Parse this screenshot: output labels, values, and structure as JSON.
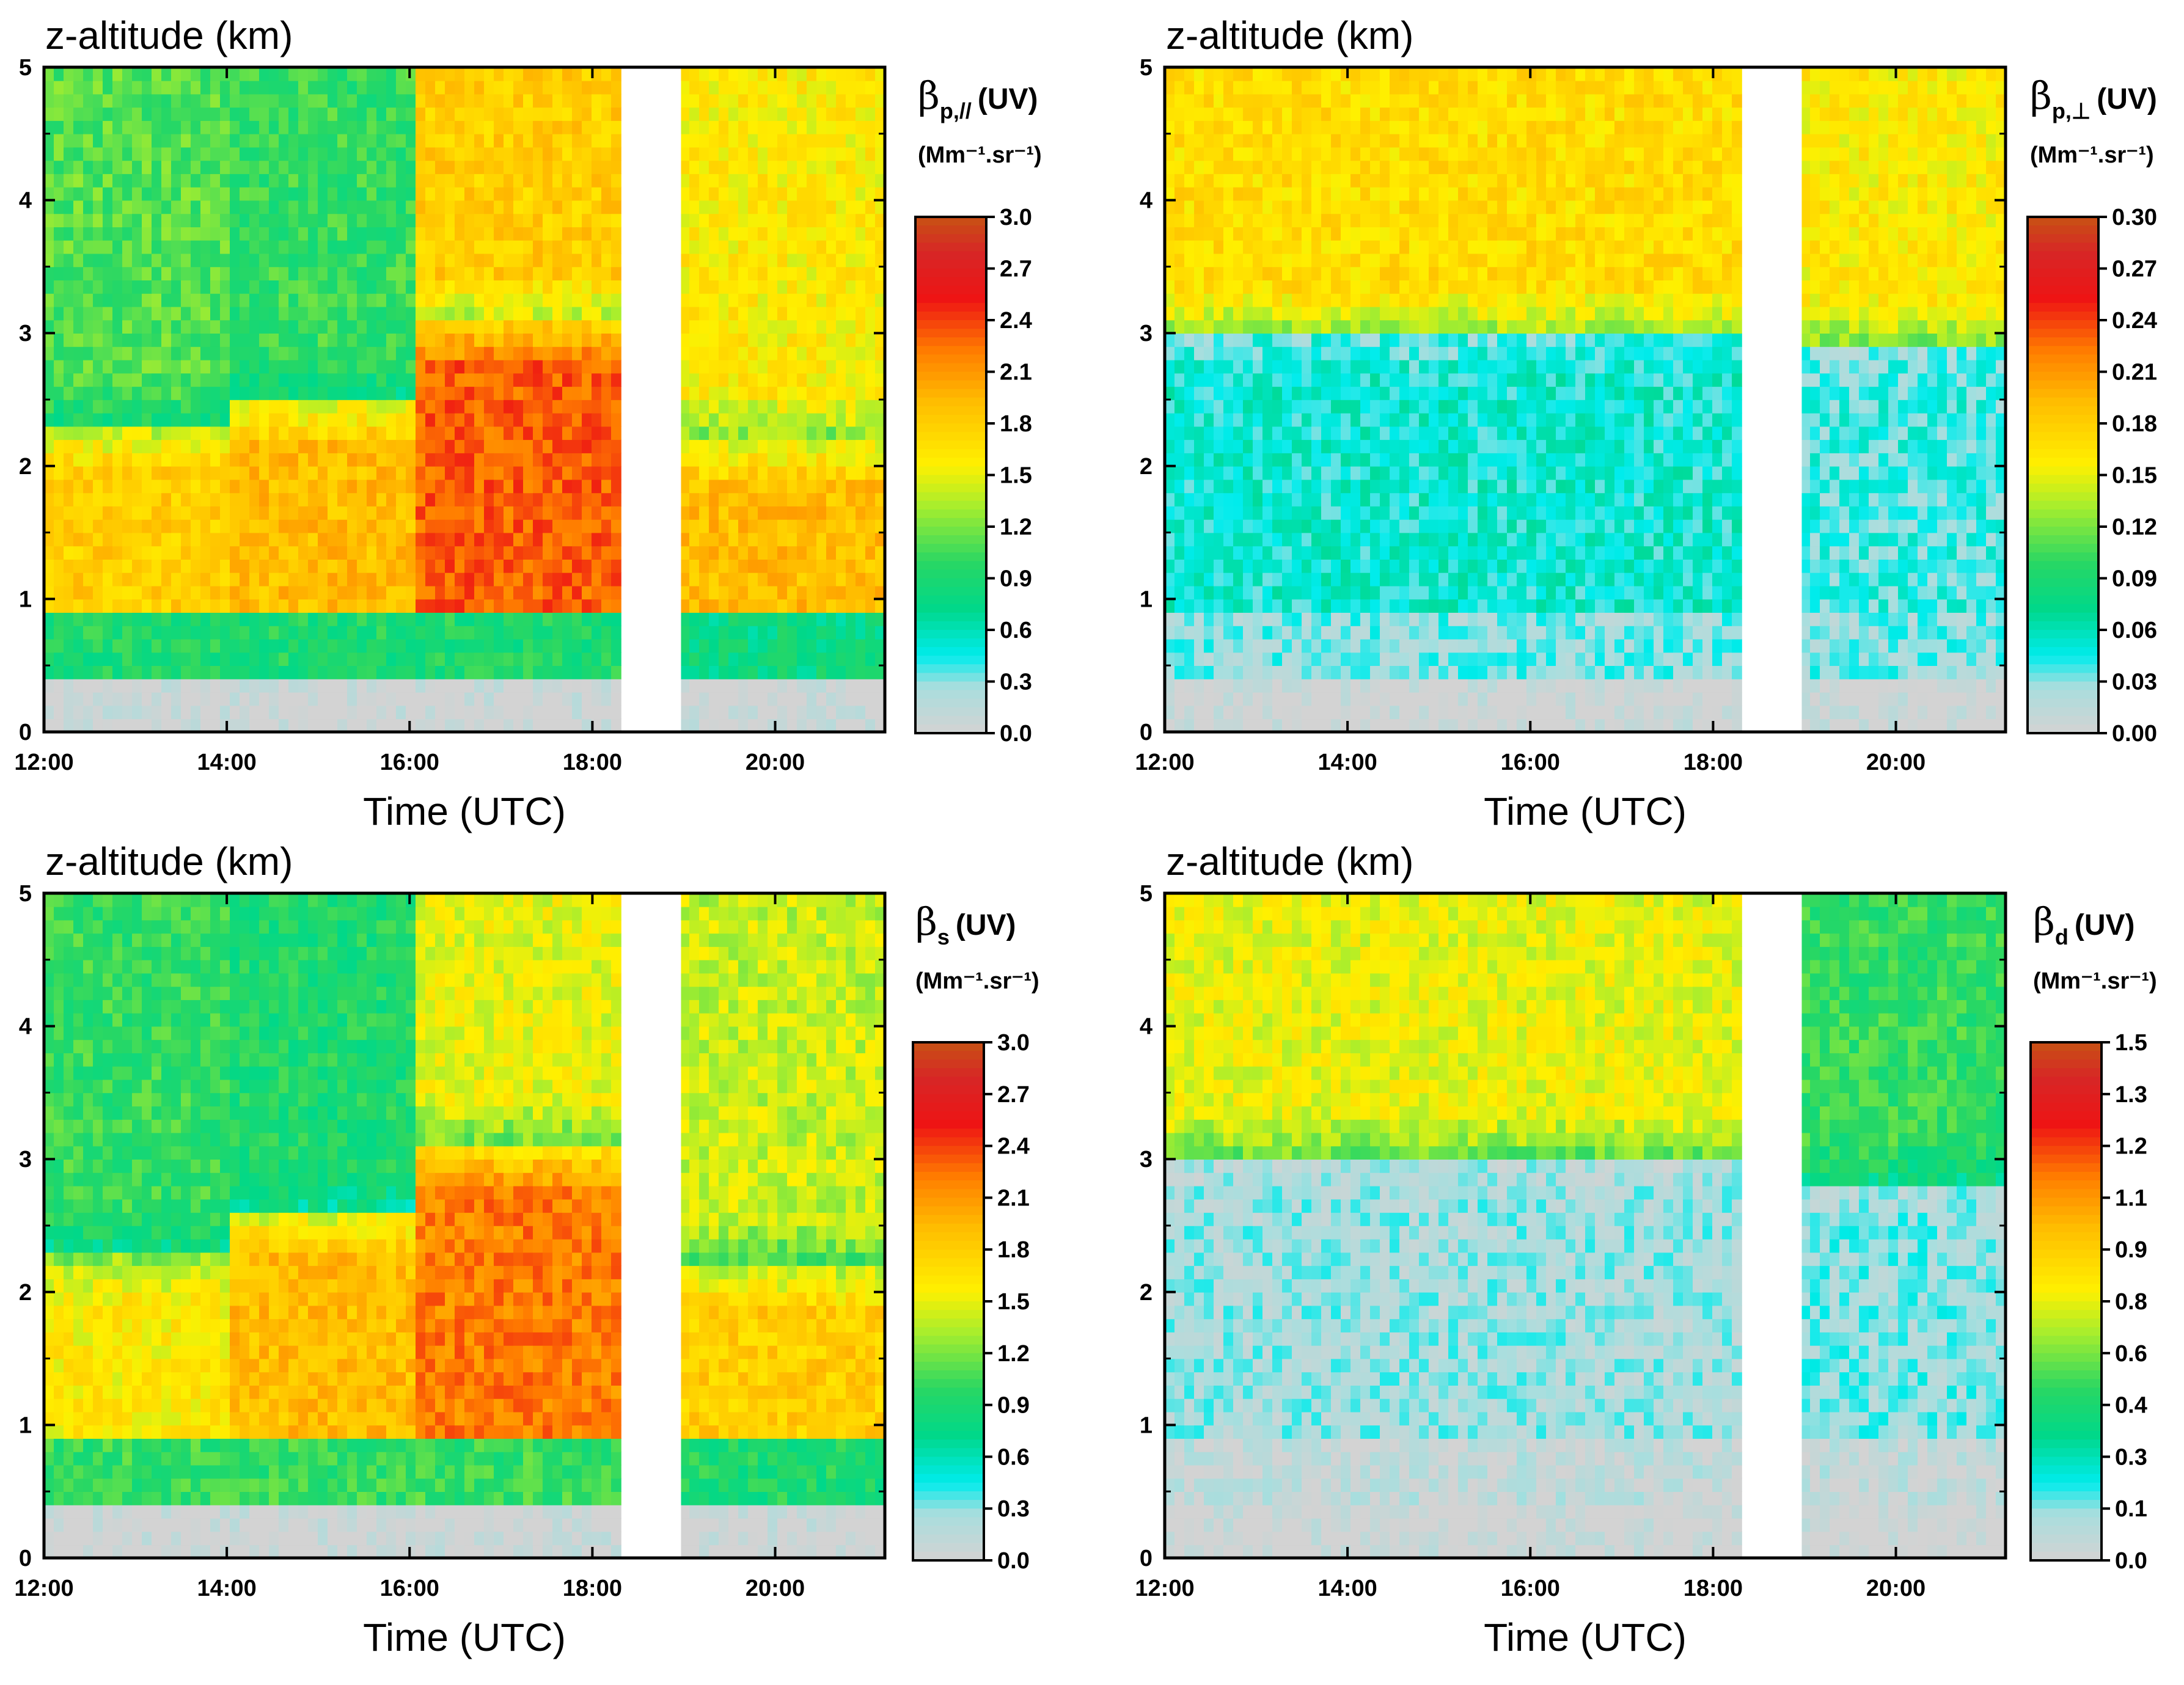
{
  "chart_data": [
    {
      "type": "heatmap",
      "panel": "top-left",
      "title": "z-altitude (km)",
      "xlabel": "Time (UTC)",
      "ylabel": "z-altitude (km)",
      "x_ticks": [
        "12:00",
        "14:00",
        "16:00",
        "18:00",
        "20:00"
      ],
      "y_ticks": [
        "0",
        "1",
        "2",
        "3",
        "4",
        "5"
      ],
      "xlim_hours": [
        12.0,
        21.2
      ],
      "ylim_km": [
        0,
        5
      ],
      "data_gap_hours": [
        18.35,
        18.97
      ],
      "colorbar": {
        "symbol": "β",
        "subscript": "p,//",
        "label_suffix": "(UV)",
        "units": "(Mm⁻¹.sr⁻¹)",
        "min": 0.0,
        "max": 3.0,
        "ticks": [
          "3.0",
          "2.7",
          "2.4",
          "2.1",
          "1.8",
          "1.5",
          "1.2",
          "0.9",
          "0.6",
          "0.3",
          "0.0"
        ]
      },
      "profile_regimes": [
        {
          "time_start": "12:00",
          "time_end": "14:00",
          "layer_top_km": 2.3,
          "layer_value": 1.8,
          "aloft_value": 1.1,
          "near_surface_value": 0.9
        },
        {
          "time_start": "14:00",
          "time_end": "16:00",
          "layer_top_km": 2.5,
          "layer_value": 1.9,
          "aloft_value": 1.0,
          "near_surface_value": 0.9
        },
        {
          "time_start": "16:00",
          "time_end": "18:20",
          "layer_top_km": 3.1,
          "layer_value": 2.3,
          "aloft_value": 1.8,
          "near_surface_value": 0.9
        },
        {
          "time_start": "19:00",
          "time_end": "21:10",
          "layer_top_km": 2.2,
          "layer_value": 1.9,
          "aloft_value": 1.6,
          "near_surface_value": 0.8
        }
      ]
    },
    {
      "type": "heatmap",
      "panel": "top-right",
      "title": "z-altitude (km)",
      "xlabel": "Time (UTC)",
      "ylabel": "z-altitude (km)",
      "x_ticks": [
        "12:00",
        "14:00",
        "16:00",
        "18:00",
        "20:00"
      ],
      "y_ticks": [
        "0",
        "1",
        "2",
        "3",
        "4",
        "5"
      ],
      "xlim_hours": [
        12.0,
        21.2
      ],
      "ylim_km": [
        0,
        5
      ],
      "data_gap_hours": [
        18.35,
        18.97
      ],
      "colorbar": {
        "symbol": "β",
        "subscript": "p,⊥",
        "label_suffix": "(UV)",
        "units": "(Mm⁻¹.sr⁻¹)",
        "min": 0.0,
        "max": 0.3,
        "ticks": [
          "0.30",
          "0.27",
          "0.24",
          "0.21",
          "0.18",
          "0.15",
          "0.12",
          "0.09",
          "0.06",
          "0.03",
          "0.00"
        ]
      },
      "profile_regimes": [
        {
          "time_start": "12:00",
          "time_end": "18:20",
          "layer_top_km": 3.0,
          "layer_value": 0.05,
          "aloft_value": 0.17,
          "near_surface_value": 0.03
        },
        {
          "time_start": "19:00",
          "time_end": "21:10",
          "layer_top_km": 2.9,
          "layer_value": 0.04,
          "aloft_value": 0.16,
          "near_surface_value": 0.03
        }
      ]
    },
    {
      "type": "heatmap",
      "panel": "bottom-left",
      "title": "z-altitude (km)",
      "xlabel": "Time (UTC)",
      "ylabel": "z-altitude (km)",
      "x_ticks": [
        "12:00",
        "14:00",
        "16:00",
        "18:00",
        "20:00"
      ],
      "y_ticks": [
        "0",
        "1",
        "2",
        "3",
        "4",
        "5"
      ],
      "xlim_hours": [
        12.0,
        21.2
      ],
      "ylim_km": [
        0,
        5
      ],
      "data_gap_hours": [
        18.35,
        18.97
      ],
      "colorbar": {
        "symbol": "β",
        "subscript": "s",
        "label_suffix": "(UV)",
        "units": "(Mm⁻¹.sr⁻¹)",
        "min": 0.0,
        "max": 3.0,
        "ticks": [
          "3.0",
          "2.7",
          "2.4",
          "2.1",
          "1.8",
          "1.5",
          "1.2",
          "0.9",
          "0.6",
          "0.3",
          "0.0"
        ]
      },
      "profile_regimes": [
        {
          "time_start": "12:00",
          "time_end": "14:00",
          "layer_top_km": 2.3,
          "layer_value": 1.6,
          "aloft_value": 1.0,
          "near_surface_value": 1.0
        },
        {
          "time_start": "14:00",
          "time_end": "16:00",
          "layer_top_km": 2.6,
          "layer_value": 1.9,
          "aloft_value": 0.9,
          "near_surface_value": 1.0
        },
        {
          "time_start": "16:00",
          "time_end": "18:20",
          "layer_top_km": 3.1,
          "layer_value": 2.2,
          "aloft_value": 1.5,
          "near_surface_value": 1.0
        },
        {
          "time_start": "19:00",
          "time_end": "21:10",
          "layer_top_km": 2.2,
          "layer_value": 1.8,
          "aloft_value": 1.4,
          "near_surface_value": 0.9
        }
      ]
    },
    {
      "type": "heatmap",
      "panel": "bottom-right",
      "title": "z-altitude (km)",
      "xlabel": "Time (UTC)",
      "ylabel": "z-altitude (km)",
      "x_ticks": [
        "12:00",
        "14:00",
        "16:00",
        "18:00",
        "20:00"
      ],
      "y_ticks": [
        "0",
        "1",
        "2",
        "3",
        "4",
        "5"
      ],
      "xlim_hours": [
        12.0,
        21.2
      ],
      "ylim_km": [
        0,
        5
      ],
      "data_gap_hours": [
        18.35,
        18.97
      ],
      "colorbar": {
        "symbol": "β",
        "subscript": "d",
        "label_suffix": "(UV)",
        "units": "(Mm⁻¹.sr⁻¹)",
        "min": 0.0,
        "max": 1.5,
        "ticks": [
          "1.5",
          "1.3",
          "1.2",
          "1.1",
          "0.9",
          "0.8",
          "0.6",
          "0.4",
          "0.3",
          "0.1",
          "0.0"
        ]
      },
      "profile_regimes": [
        {
          "time_start": "12:00",
          "time_end": "18:20",
          "layer_top_km": 3.0,
          "layer_value": 0.12,
          "aloft_value": 0.75,
          "near_surface_value": 0.05
        },
        {
          "time_start": "19:00",
          "time_end": "21:10",
          "layer_top_km": 2.8,
          "layer_value": 0.15,
          "aloft_value": 0.5,
          "near_surface_value": 0.05
        }
      ]
    }
  ]
}
